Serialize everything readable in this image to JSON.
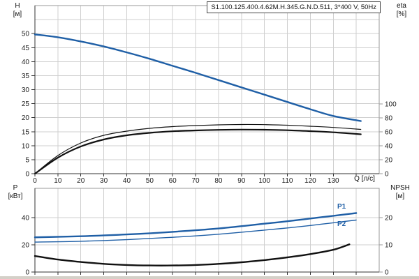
{
  "title": "S1.100.125.400.4.62M.H.345.G.N.D.511, 3*400 V, 50Hz",
  "colors": {
    "curve_blue": "#1f5fa6",
    "curve_black": "#111111",
    "grid": "#cfcfcf",
    "frame": "#9a9a9a",
    "axis": "#333333",
    "tick_text": "#1a1a1a"
  },
  "labels": {
    "top_left_axis": [
      "H",
      "[м]"
    ],
    "top_right_axis": [
      "eta",
      "[%]"
    ],
    "bottom_left_axis": [
      "P",
      "[кВт]"
    ],
    "bottom_right_axis": [
      "NPSH",
      "[м]"
    ],
    "x_axis": "Q [л/с]",
    "p1": "P1",
    "p2": "P2"
  },
  "chart_data": [
    {
      "type": "line",
      "name": "pump-performance",
      "title": "S1.100.125.400.4.62M.H.345.G.N.D.511, 3*400 V, 50Hz",
      "xlabel": "Q [л/с]",
      "grid": true,
      "x": {
        "lim": [
          0,
          150
        ],
        "ticks": [
          0,
          10,
          20,
          30,
          40,
          50,
          60,
          70,
          80,
          90,
          100,
          110,
          120,
          130
        ],
        "gridlines": [
          10,
          20,
          30,
          40,
          50,
          60,
          70,
          80,
          90,
          100,
          110,
          120,
          130,
          140
        ]
      },
      "left_axis": {
        "label": "H [м]",
        "lim": [
          0,
          60
        ],
        "ticks": [
          0,
          5,
          10,
          15,
          20,
          25,
          30,
          35,
          40,
          45,
          50
        ],
        "gridlines": [
          5,
          10,
          15,
          20,
          25,
          30,
          35,
          40,
          45,
          50,
          55
        ]
      },
      "right_axis": {
        "label": "eta [%]",
        "lim": [
          0,
          241
        ],
        "ticks": [
          0,
          20,
          40,
          60,
          80,
          100
        ]
      },
      "series": [
        {
          "name": "H",
          "axis": "left",
          "color": "#1f5fa6",
          "width": 2.4,
          "points": [
            [
              0,
              49.7
            ],
            [
              10,
              48.7
            ],
            [
              20,
              47.2
            ],
            [
              30,
              45.4
            ],
            [
              40,
              43.3
            ],
            [
              50,
              41.0
            ],
            [
              60,
              38.5
            ],
            [
              70,
              36.0
            ],
            [
              80,
              33.4
            ],
            [
              90,
              30.8
            ],
            [
              100,
              28.2
            ],
            [
              110,
              25.6
            ],
            [
              120,
              23.0
            ],
            [
              130,
              20.6
            ],
            [
              142,
              18.8
            ]
          ]
        },
        {
          "name": "eta-pump",
          "axis": "right",
          "color": "#111111",
          "width": 1.2,
          "points": [
            [
              0,
              0
            ],
            [
              10,
              26
            ],
            [
              20,
              44
            ],
            [
              30,
              55
            ],
            [
              40,
              61
            ],
            [
              50,
              65
            ],
            [
              60,
              67.5
            ],
            [
              70,
              69
            ],
            [
              80,
              70
            ],
            [
              90,
              70.5
            ],
            [
              100,
              70.3
            ],
            [
              110,
              69.5
            ],
            [
              120,
              68
            ],
            [
              130,
              66.3
            ],
            [
              142,
              63.5
            ]
          ]
        },
        {
          "name": "eta-total",
          "axis": "right",
          "color": "#111111",
          "width": 2.2,
          "points": [
            [
              0,
              0
            ],
            [
              10,
              23
            ],
            [
              20,
              39
            ],
            [
              30,
              49
            ],
            [
              40,
              55
            ],
            [
              50,
              58.5
            ],
            [
              60,
              60.8
            ],
            [
              70,
              62
            ],
            [
              80,
              62.8
            ],
            [
              90,
              63.2
            ],
            [
              100,
              63
            ],
            [
              110,
              62.3
            ],
            [
              120,
              61
            ],
            [
              130,
              59.3
            ],
            [
              142,
              56.5
            ]
          ]
        }
      ]
    },
    {
      "type": "line",
      "name": "power-npsh",
      "xlabel": "",
      "grid": true,
      "x": {
        "lim": [
          0,
          150
        ],
        "ticks": [],
        "gridlines": [
          10,
          20,
          30,
          40,
          50,
          60,
          70,
          80,
          90,
          100,
          110,
          120,
          130,
          140
        ]
      },
      "left_axis": {
        "label": "P [кВт]",
        "lim": [
          0,
          61.5
        ],
        "ticks": [
          0,
          20,
          40
        ],
        "gridlines": [
          20,
          40
        ]
      },
      "right_axis": {
        "label": "NPSH [м]",
        "lim": [
          0,
          30.8
        ],
        "ticks": [
          0,
          10,
          20
        ]
      },
      "series": [
        {
          "name": "P1",
          "axis": "left",
          "color": "#1f5fa6",
          "width": 2.4,
          "points": [
            [
              0,
              25.5
            ],
            [
              20,
              26.3
            ],
            [
              40,
              27.6
            ],
            [
              60,
              29.5
            ],
            [
              80,
              32
            ],
            [
              100,
              35.5
            ],
            [
              110,
              37.3
            ],
            [
              120,
              39.3
            ],
            [
              130,
              41.3
            ],
            [
              140,
              43.3
            ]
          ]
        },
        {
          "name": "P2",
          "axis": "left",
          "color": "#1f5fa6",
          "width": 1.4,
          "points": [
            [
              0,
              22
            ],
            [
              20,
              22.6
            ],
            [
              40,
              23.8
            ],
            [
              60,
              25.5
            ],
            [
              80,
              27.8
            ],
            [
              100,
              30.8
            ],
            [
              110,
              32.4
            ],
            [
              120,
              34.2
            ],
            [
              130,
              36.2
            ],
            [
              140,
              38.2
            ]
          ]
        },
        {
          "name": "NPSH",
          "axis": "right",
          "color": "#111111",
          "width": 2.4,
          "points": [
            [
              0,
              5.9
            ],
            [
              10,
              4.6
            ],
            [
              20,
              3.7
            ],
            [
              30,
              3.0
            ],
            [
              40,
              2.6
            ],
            [
              50,
              2.4
            ],
            [
              60,
              2.4
            ],
            [
              70,
              2.6
            ],
            [
              80,
              3.0
            ],
            [
              90,
              3.6
            ],
            [
              100,
              4.4
            ],
            [
              110,
              5.4
            ],
            [
              120,
              6.6
            ],
            [
              130,
              8.2
            ],
            [
              137,
              10.2
            ]
          ]
        }
      ]
    }
  ]
}
